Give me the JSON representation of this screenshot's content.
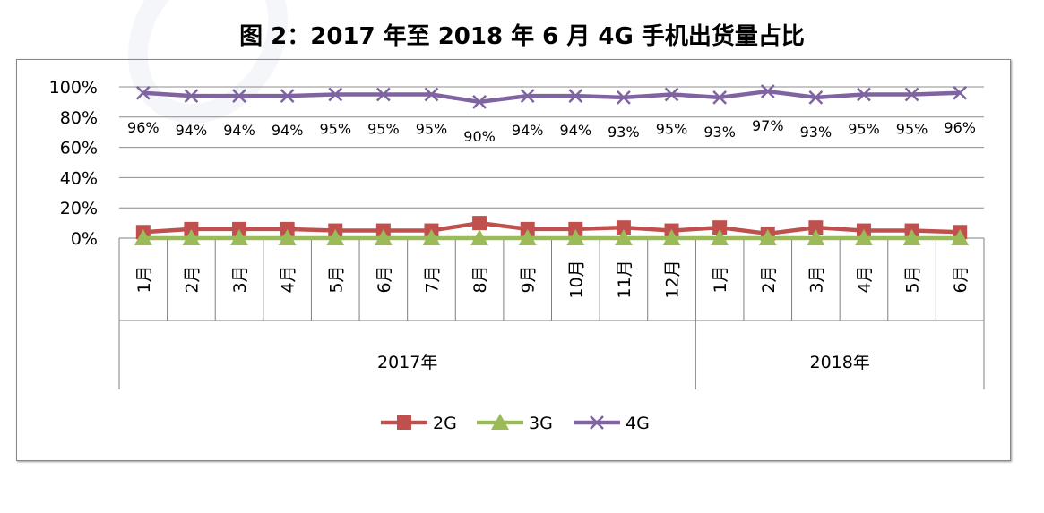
{
  "title": "图 2：2017 年至 2018 年 6 月 4G 手机出货量占比",
  "chart_data": {
    "type": "line",
    "title": "图 2：2017 年至 2018 年 6 月 4G 手机出货量占比",
    "categories": [
      "1月",
      "2月",
      "3月",
      "4月",
      "5月",
      "6月",
      "7月",
      "8月",
      "9月",
      "10月",
      "11月",
      "12月",
      "1月",
      "2月",
      "3月",
      "4月",
      "5月",
      "6月"
    ],
    "category_groups": [
      {
        "label": "2017年",
        "count": 12
      },
      {
        "label": "2018年",
        "count": 6
      }
    ],
    "ylim": [
      0,
      100
    ],
    "yticks": [
      "0%",
      "20%",
      "40%",
      "60%",
      "80%",
      "100%"
    ],
    "grid": true,
    "legend_position": "bottom",
    "series": [
      {
        "name": "2G",
        "color": "#C0504D",
        "marker": "square",
        "values": [
          4,
          6,
          6,
          6,
          5,
          5,
          5,
          10,
          6,
          6,
          7,
          5,
          7,
          3,
          7,
          5,
          5,
          4
        ]
      },
      {
        "name": "3G",
        "color": "#9BBB59",
        "marker": "triangle",
        "values": [
          0,
          0,
          0,
          0,
          0,
          0,
          0,
          0,
          0,
          0,
          0,
          0,
          0,
          0,
          0,
          0,
          0,
          0
        ]
      },
      {
        "name": "4G",
        "color": "#8064A2",
        "marker": "x",
        "values": [
          96,
          94,
          94,
          94,
          95,
          95,
          95,
          90,
          94,
          94,
          93,
          95,
          93,
          97,
          93,
          95,
          95,
          96
        ],
        "labels": [
          "96%",
          "94%",
          "94%",
          "94%",
          "95%",
          "95%",
          "95%",
          "90%",
          "94%",
          "94%",
          "93%",
          "95%",
          "93%",
          "97%",
          "93%",
          "95%",
          "95%",
          "96%"
        ]
      }
    ]
  }
}
